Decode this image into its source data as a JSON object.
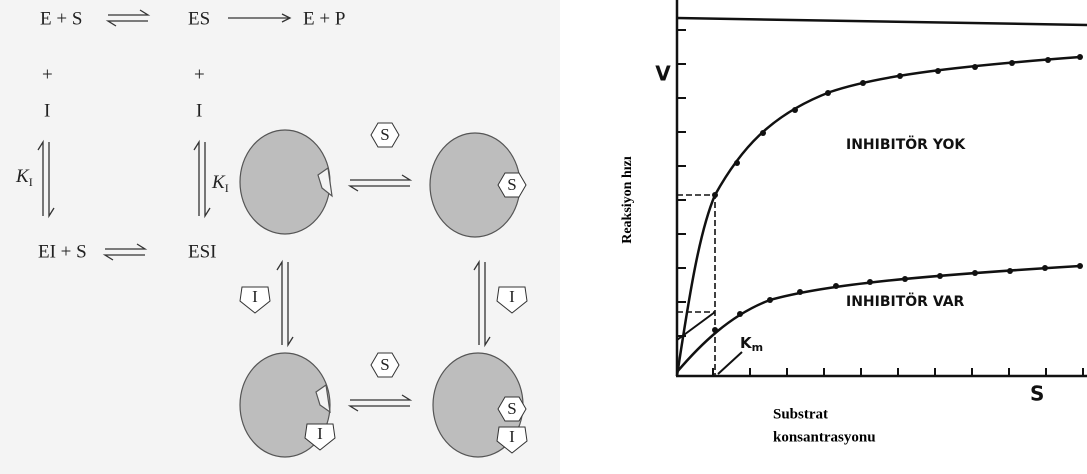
{
  "scheme": {
    "top_row": [
      "E + S",
      "ES",
      "E + P"
    ],
    "plus_signs": [
      "+",
      "+"
    ],
    "inhibitors": [
      "I",
      "I"
    ],
    "constants": [
      {
        "symbol": "K",
        "subscript": "I"
      },
      {
        "symbol": "K",
        "subscript": "I"
      }
    ],
    "bottom_row": [
      "EI + S",
      "ESI"
    ]
  },
  "enzyme_diagram": {
    "ligands": [
      "S",
      "S",
      "I",
      "I",
      "S",
      "I",
      "S",
      "I"
    ]
  },
  "graph": {
    "y_axis_label": "Reaksiyon hızı",
    "v_label": "V",
    "upper_curve_label": "INHIBITÖR YOK",
    "lower_curve_label": "INHIBITÖR VAR",
    "km_label": {
      "symbol": "K",
      "subscript": "m"
    },
    "s_label": "S",
    "x_axis_label": [
      "Substrat",
      "konsantrasyonu"
    ]
  }
}
